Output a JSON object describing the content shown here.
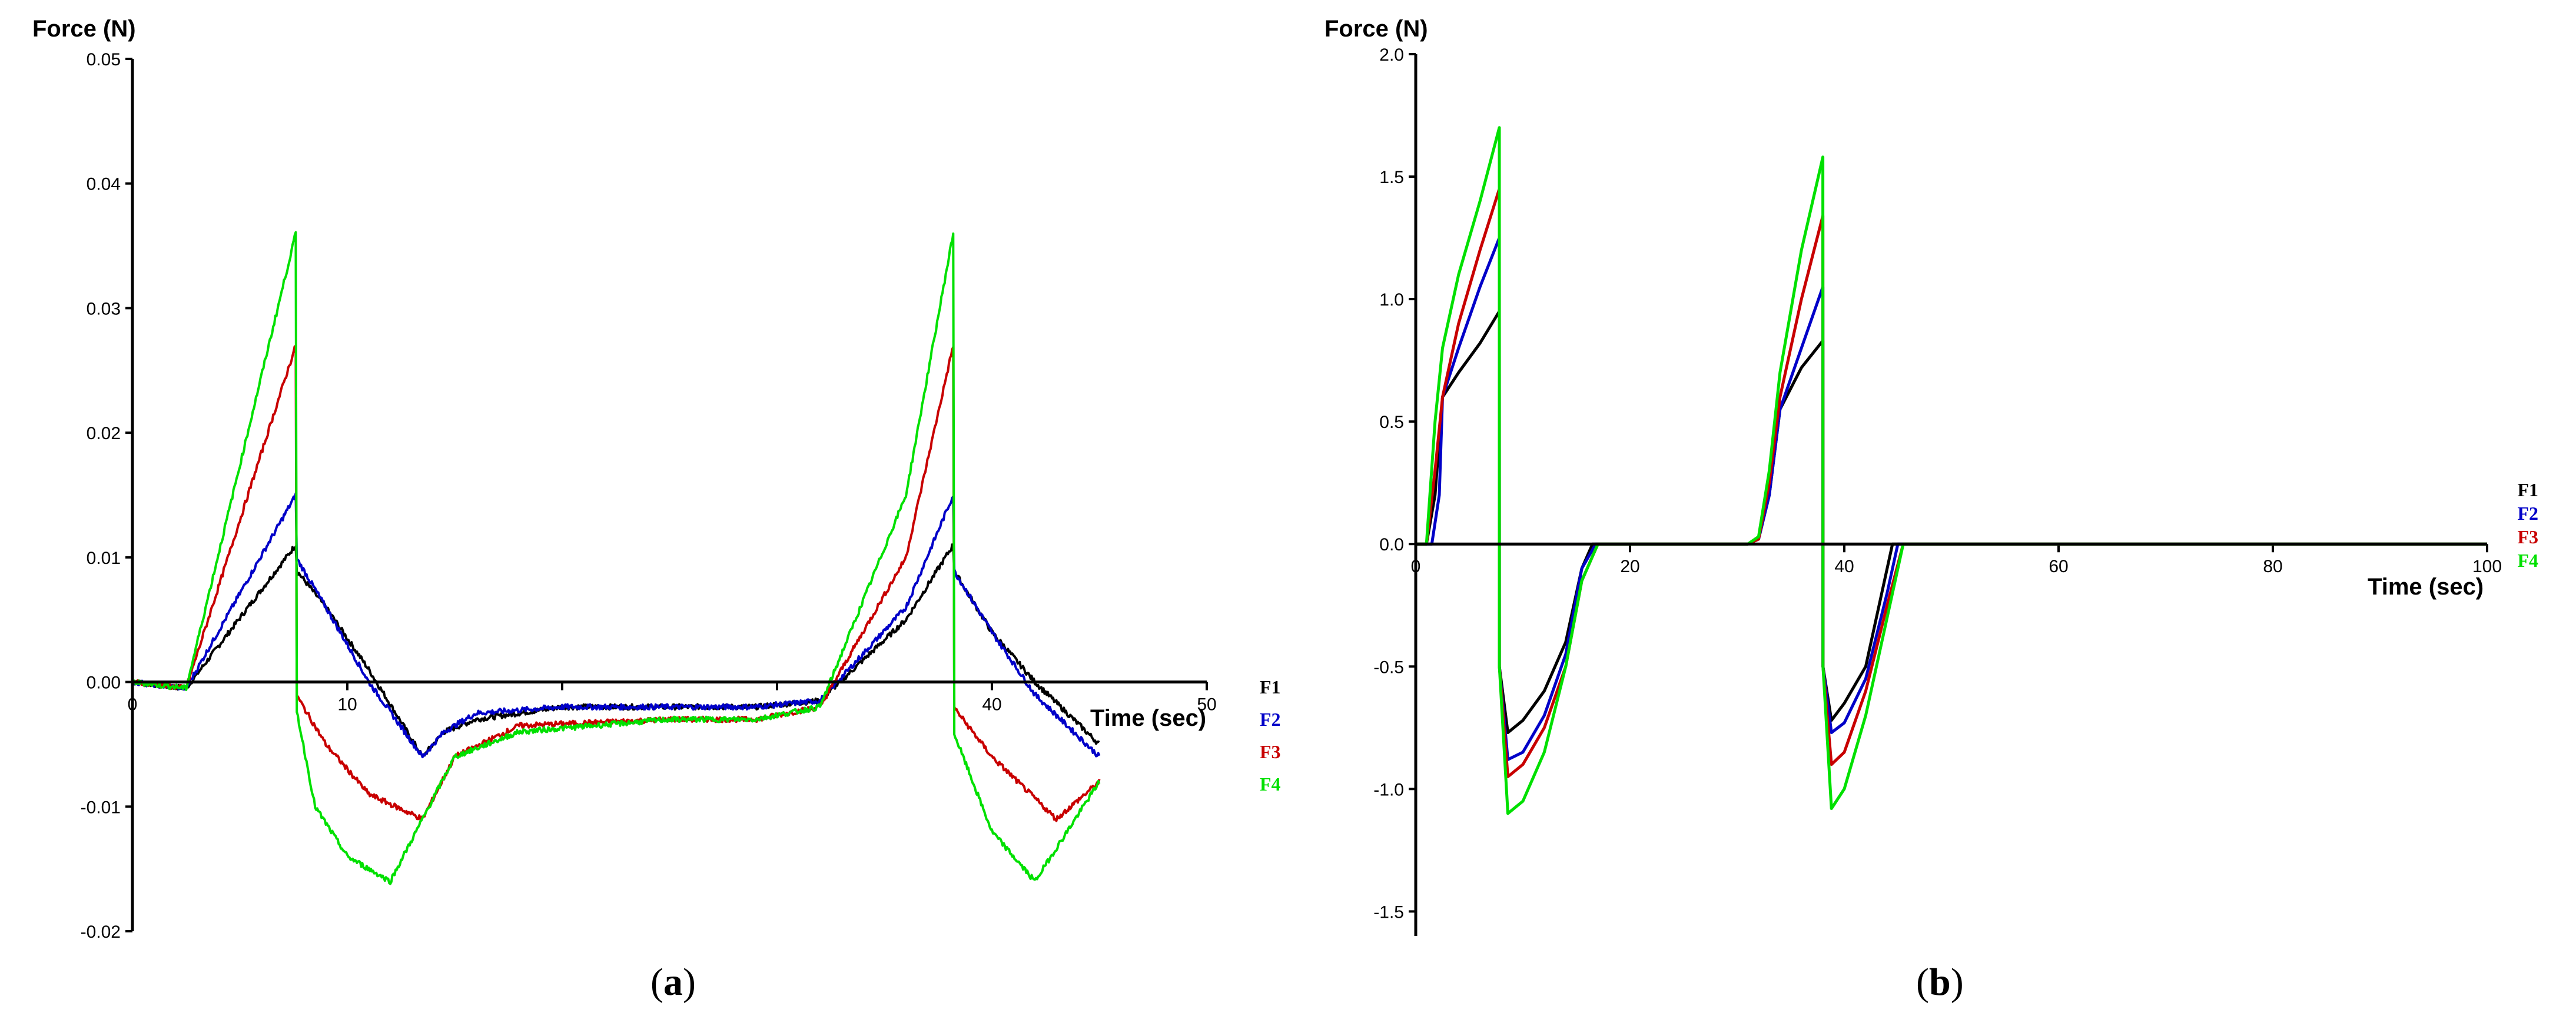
{
  "chart_data": [
    {
      "type": "line",
      "panel_label": "a",
      "ylabel": "Force (N)",
      "xlabel": "Time (sec)",
      "xlim": [
        0,
        50
      ],
      "ylim": [
        -0.02,
        0.05
      ],
      "xticks": [
        0,
        10,
        20,
        30,
        40,
        50
      ],
      "xtick_labels": [
        "0",
        "10",
        "",
        "",
        "40",
        "50"
      ],
      "yticks": [
        0.05,
        0.04,
        0.03,
        0.02,
        0.01,
        0.0,
        -0.01,
        -0.02
      ],
      "ytick_labels": [
        "0.05",
        "0.04",
        "0.03",
        "0.02",
        "0.01",
        "0.00",
        "-0.01",
        "-0.02"
      ],
      "x_visible_range": [
        0,
        45
      ],
      "legend_position": "right",
      "noisy": true,
      "series": [
        {
          "name": "F1",
          "color": "#000000",
          "x": [
            0,
            2.5,
            7.6,
            7.61,
            9,
            11,
            13.5,
            14.5,
            16,
            20,
            25,
            29,
            32,
            36,
            38.2,
            38.21,
            40,
            42,
            45
          ],
          "y": [
            0,
            -0.0005,
            0.011,
            0.009,
            0.006,
            0.001,
            -0.006,
            -0.004,
            -0.003,
            -0.002,
            -0.002,
            -0.002,
            -0.0015,
            0.005,
            0.011,
            0.009,
            0.004,
            0.0,
            -0.005
          ]
        },
        {
          "name": "F2",
          "color": "#0000c8",
          "x": [
            0,
            2.5,
            7.6,
            7.61,
            9,
            11,
            13.5,
            14.5,
            16,
            20,
            25,
            29,
            32,
            36,
            38.2,
            38.21,
            40,
            42,
            45
          ],
          "y": [
            0,
            -0.0005,
            0.015,
            0.01,
            0.006,
            0.0,
            -0.006,
            -0.004,
            -0.0025,
            -0.002,
            -0.002,
            -0.002,
            -0.0015,
            0.006,
            0.015,
            0.009,
            0.004,
            -0.001,
            -0.006
          ]
        },
        {
          "name": "F3",
          "color": "#c80000",
          "x": [
            0,
            2.5,
            7.6,
            7.61,
            9,
            11,
            13.5,
            15,
            18,
            25,
            29,
            32,
            36,
            38.2,
            38.21,
            40,
            43,
            45
          ],
          "y": [
            0,
            -0.0005,
            0.027,
            -0.001,
            -0.005,
            -0.009,
            -0.011,
            -0.006,
            -0.0035,
            -0.003,
            -0.003,
            -0.002,
            0.01,
            0.027,
            -0.002,
            -0.006,
            -0.011,
            -0.008
          ]
        },
        {
          "name": "F4",
          "color": "#00e000",
          "x": [
            0,
            2.5,
            7.6,
            7.61,
            8.5,
            10,
            12,
            15,
            18,
            25,
            29,
            32,
            36,
            38.2,
            38.21,
            40,
            42,
            45
          ],
          "y": [
            0,
            -0.0005,
            0.036,
            -0.002,
            -0.01,
            -0.014,
            -0.016,
            -0.006,
            -0.004,
            -0.003,
            -0.003,
            -0.002,
            0.015,
            0.036,
            -0.004,
            -0.012,
            -0.016,
            -0.008
          ]
        }
      ]
    },
    {
      "type": "line",
      "panel_label": "b",
      "ylabel": "Force (N)",
      "xlabel": "Time (sec)",
      "xlim": [
        0,
        100
      ],
      "ylim": [
        -1.6,
        2.0
      ],
      "xticks": [
        0,
        20,
        40,
        60,
        80,
        100
      ],
      "xtick_labels": [
        "0",
        "20",
        "40",
        "60",
        "80",
        "100"
      ],
      "yticks": [
        2.0,
        1.5,
        1.0,
        0.5,
        0.0,
        -0.5,
        -1.0,
        -1.5
      ],
      "ytick_labels": [
        "2.0",
        "1.5",
        "1.0",
        "0.5",
        "0.0",
        "-0.5",
        "-1.0",
        "-1.5"
      ],
      "legend_position": "right",
      "noisy": false,
      "series": [
        {
          "name": "F1",
          "color": "#000000",
          "x": [
            0,
            1,
            1.8,
            2.5,
            4,
            6,
            7.8,
            7.81,
            8.6,
            10,
            12,
            14,
            15.5,
            16.5,
            20,
            31,
            32,
            33,
            34,
            36,
            38,
            38.01,
            38.8,
            40,
            42,
            43.5,
            44.5,
            100
          ],
          "y": [
            0,
            0,
            0.2,
            0.6,
            0.7,
            0.82,
            0.95,
            -0.5,
            -0.77,
            -0.72,
            -0.6,
            -0.4,
            -0.1,
            0,
            0,
            0,
            0.02,
            0.2,
            0.55,
            0.72,
            0.83,
            -0.5,
            -0.72,
            -0.65,
            -0.5,
            -0.2,
            0,
            0
          ]
        },
        {
          "name": "F2",
          "color": "#0000c8",
          "x": [
            0,
            1.5,
            2.2,
            2.5,
            4,
            6,
            7.8,
            7.81,
            8.6,
            10,
            12,
            14,
            15.5,
            16.8,
            20,
            31,
            32,
            33,
            34,
            36,
            38,
            38.01,
            38.8,
            40,
            42,
            44,
            45,
            100
          ],
          "y": [
            0,
            0,
            0.2,
            0.6,
            0.8,
            1.05,
            1.25,
            -0.5,
            -0.88,
            -0.85,
            -0.7,
            -0.45,
            -0.1,
            0,
            0,
            0,
            0.02,
            0.2,
            0.55,
            0.8,
            1.05,
            -0.5,
            -0.77,
            -0.73,
            -0.55,
            -0.2,
            0,
            0
          ]
        },
        {
          "name": "F3",
          "color": "#c80000",
          "x": [
            0,
            1,
            1.8,
            2.5,
            4,
            6,
            7.8,
            7.81,
            8.6,
            10,
            12,
            14,
            15.5,
            17,
            20,
            31,
            32,
            33,
            34,
            36,
            38,
            38.01,
            38.8,
            40,
            42,
            44,
            45.5,
            100
          ],
          "y": [
            0,
            0,
            0.3,
            0.6,
            0.9,
            1.2,
            1.45,
            -0.5,
            -0.95,
            -0.9,
            -0.75,
            -0.5,
            -0.15,
            0,
            0,
            0,
            0.02,
            0.25,
            0.6,
            1.0,
            1.34,
            -0.5,
            -0.9,
            -0.85,
            -0.6,
            -0.25,
            0,
            0
          ]
        },
        {
          "name": "F4",
          "color": "#00e000",
          "x": [
            0,
            1,
            1.8,
            2.5,
            4,
            6,
            7.8,
            7.81,
            8.6,
            10,
            12,
            14,
            15.5,
            17,
            20,
            31,
            32,
            33,
            34,
            36,
            38,
            38.01,
            38.8,
            40,
            42,
            44,
            45.5,
            100
          ],
          "y": [
            0,
            0,
            0.5,
            0.8,
            1.1,
            1.4,
            1.7,
            -0.5,
            -1.1,
            -1.05,
            -0.85,
            -0.5,
            -0.15,
            0,
            0,
            0,
            0.03,
            0.3,
            0.7,
            1.2,
            1.58,
            -0.5,
            -1.08,
            -1.0,
            -0.7,
            -0.3,
            0,
            0
          ]
        }
      ]
    }
  ]
}
